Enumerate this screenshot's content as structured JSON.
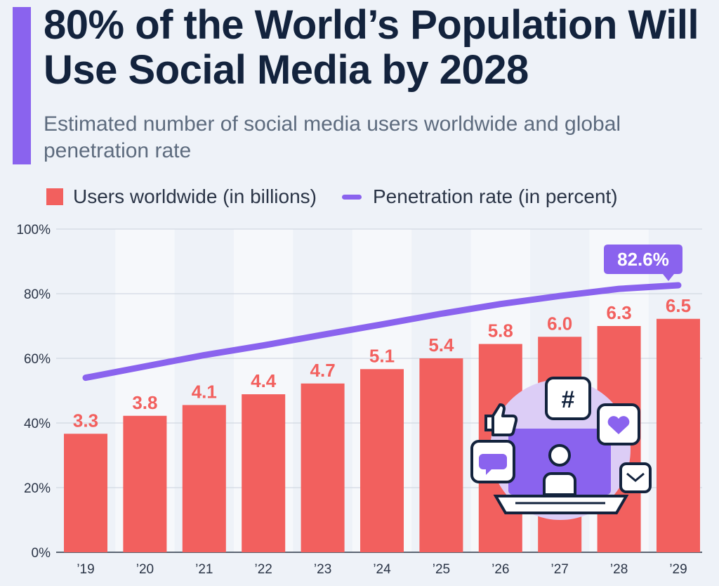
{
  "header": {
    "title": "80% of the World’s Population Will Use Social Media by 2028",
    "subtitle": "Estimated number of social media users worldwide and global penetration rate"
  },
  "legend": {
    "bars": "Users worldwide (in billions)",
    "line": "Penetration rate (in percent)"
  },
  "colors": {
    "bars": "#f2605e",
    "line": "#8a63ee",
    "title": "#13233d"
  },
  "chart_data": {
    "type": "bar",
    "categories": [
      "’19",
      "’20",
      "’21",
      "’22",
      "’23",
      "’24",
      "’25",
      "’26",
      "’27",
      "’28",
      "’29"
    ],
    "series": [
      {
        "name": "Users worldwide (in billions)",
        "type": "bar",
        "values": [
          3.3,
          3.8,
          4.1,
          4.4,
          4.7,
          5.1,
          5.4,
          5.8,
          6.0,
          6.3,
          6.5
        ],
        "labels": [
          "3.3",
          "3.8",
          "4.1",
          "4.4",
          "4.7",
          "5.1",
          "5.4",
          "5.8",
          "6.0",
          "6.3",
          "6.5"
        ]
      },
      {
        "name": "Penetration rate (in percent)",
        "type": "line",
        "values": [
          54,
          57.5,
          61,
          64,
          67.3,
          70.5,
          73.8,
          76.8,
          79.3,
          81.5,
          82.6
        ]
      }
    ],
    "y_ticks": [
      "0%",
      "20%",
      "40%",
      "60%",
      "80%",
      "100%"
    ],
    "ylim": [
      0,
      100
    ],
    "bar_scale": "bars scaled so 9 billion = 100%",
    "callout": "82.6%",
    "grid": true,
    "legend_position": "top-left"
  }
}
